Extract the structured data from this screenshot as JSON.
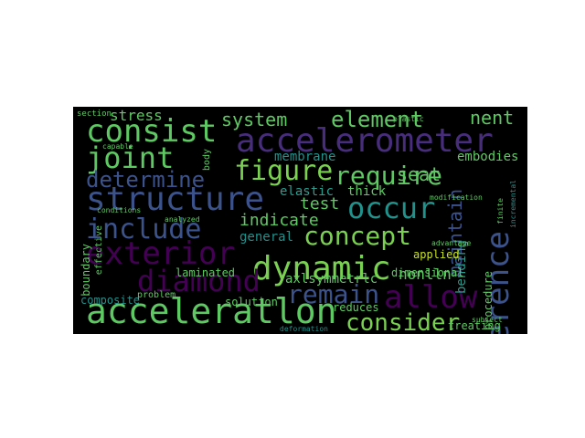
{
  "wordcloud": {
    "palette": {
      "background": "#000000",
      "green": "#5ec962",
      "lightgreen": "#7ad151",
      "teal": "#2a9d8f",
      "cyan": "#21918c",
      "blue": "#3b528b",
      "purple": "#472d7b",
      "darkpurple": "#440154",
      "yellow": "#c8e020"
    },
    "words": [
      "accelerometer",
      "acceleratlon",
      "structure",
      "reference",
      "dynamic",
      "diamond",
      "consist",
      "concept",
      "exterior",
      "joint",
      "figure",
      "require",
      "include",
      "determine",
      "occur",
      "allow",
      "remain",
      "consider",
      "element",
      "system",
      "stress",
      "nent",
      "membrane",
      "seat",
      "test",
      "indicate",
      "thick",
      "general",
      "elastic",
      "maintain",
      "bending",
      "embodies",
      "axlsymmetrlc",
      "dimensional",
      "nonlln",
      "laminated",
      "composite",
      "solution",
      "reduces",
      "treating",
      "procedure",
      "boundary",
      "applied",
      "effective",
      "problem",
      "deformation",
      "section",
      "body",
      "advantage",
      "modification",
      "plastic",
      "conditions",
      "finite",
      "incremental",
      "capable",
      "analyzed",
      "subject"
    ]
  }
}
